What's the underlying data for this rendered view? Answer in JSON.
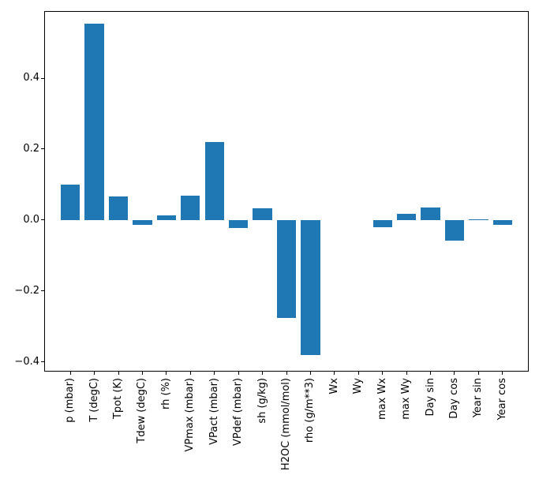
{
  "figure": {
    "background": "#ffffff",
    "spine_color": "#000000",
    "tick_color": "#000000"
  },
  "chart_data": {
    "type": "bar",
    "title": "",
    "xlabel": "",
    "ylabel": "",
    "bar_color": "#1f77b4",
    "grid": false,
    "legend": null,
    "x_tick_rotation": 90,
    "ylim": [
      -0.427,
      0.589
    ],
    "yticks": [
      -0.4,
      -0.2,
      0.0,
      0.2,
      0.4
    ],
    "ytick_labels": [
      "−0.4",
      "−0.2",
      "0.0",
      "0.2",
      "0.4"
    ],
    "categories": [
      "p (mbar)",
      "T (degC)",
      "Tpot (K)",
      "Tdew (degC)",
      "rh (%)",
      "VPmax (mbar)",
      "VPact (mbar)",
      "VPdef (mbar)",
      "sh (g/kg)",
      "H2OC (mmol/mol)",
      "rho (g/m**3)",
      "Wx",
      "Wy",
      "max Wx",
      "max Wy",
      "Day sin",
      "Day cos",
      "Year sin",
      "Year cos"
    ],
    "values": [
      0.1,
      0.553,
      0.066,
      -0.013,
      0.013,
      0.069,
      0.22,
      -0.022,
      0.033,
      -0.275,
      -0.38,
      0.0,
      0.0,
      -0.02,
      0.018,
      0.036,
      -0.058,
      0.002,
      -0.013
    ]
  }
}
